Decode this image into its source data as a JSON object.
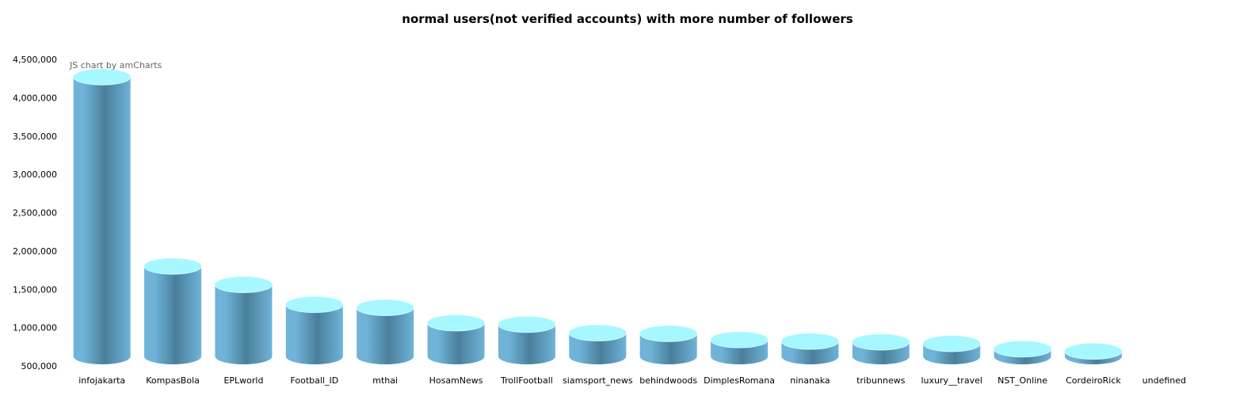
{
  "chart_data": {
    "type": "bar",
    "title": "normal users(not verified accounts) with more number of followers",
    "credit": "JS chart by amCharts",
    "categories": [
      "infojakarta",
      "KompasBola",
      "EPLworld",
      "Football_ID",
      "mthai",
      "HosamNews",
      "TrollFootball",
      "siamsport_news",
      "behindwoods",
      "DimplesRomana",
      "ninanaka",
      "tribunnews",
      "luxury__travel",
      "NST_Online",
      "CordeiroRick",
      "undefined"
    ],
    "series": [
      {
        "values": [
          4270000,
          1800000,
          1560000,
          1300000,
          1260000,
          1060000,
          1040000,
          930000,
          920000,
          840000,
          820000,
          810000,
          790000,
          720000,
          690000,
          null
        ]
      }
    ],
    "ylim": [
      500000,
      4500000
    ],
    "yticks": [
      500000,
      1000000,
      1500000,
      2000000,
      2500000,
      3000000,
      3500000,
      4000000,
      4500000
    ],
    "ytick_labels": [
      "500,000",
      "1,000,000",
      "1,500,000",
      "2,000,000",
      "2,500,000",
      "3,000,000",
      "3,500,000",
      "4,000,000",
      "4,500,000"
    ],
    "xlabel": "",
    "ylabel": "",
    "grid": false,
    "legend": "none",
    "colors": {
      "body_dark": "#4a7f9b",
      "body_light": "#6fb3d8",
      "top": "#a6f7ff",
      "top_edge": "#c8fbff"
    }
  }
}
